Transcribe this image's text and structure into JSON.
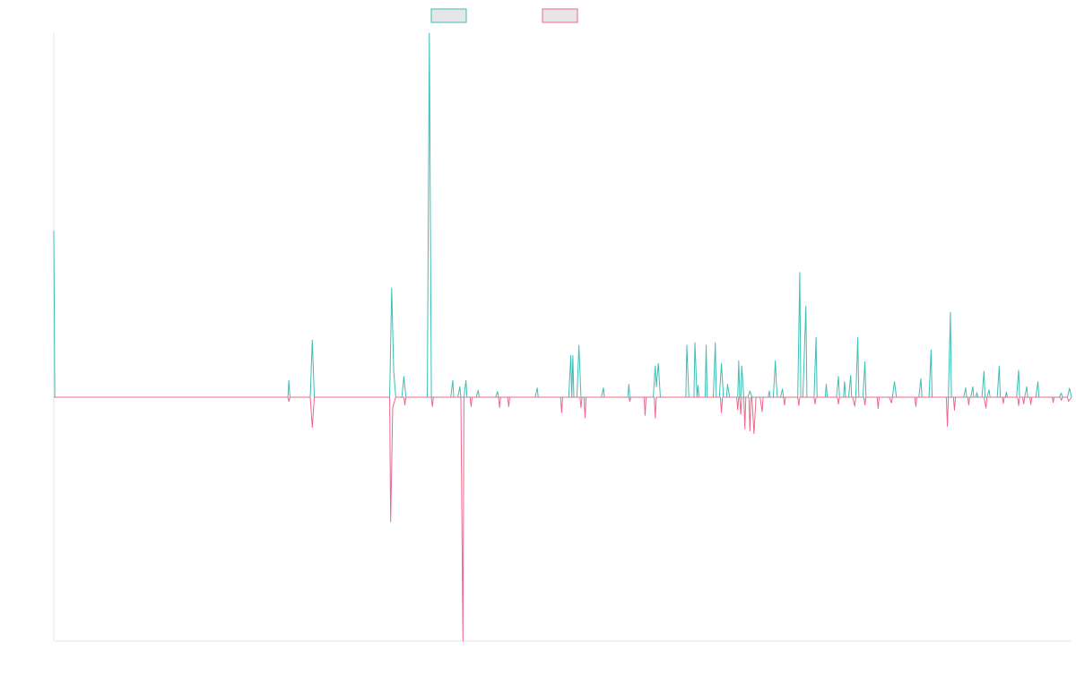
{
  "colors": {
    "series_a": "#3dbfb6",
    "series_b": "#f0668a",
    "legend_fill": "#e6e6e6",
    "axis": "#e6e6e6"
  },
  "chart_data": {
    "type": "line",
    "title": "",
    "xlabel": "",
    "ylabel": "",
    "grid": false,
    "legend_position": "top-center",
    "xlim": [
      0,
      1000
    ],
    "ylim": [
      -47,
      70
    ],
    "series": [
      {
        "color": "#3dbfb6",
        "points": [
          [
            0,
            32
          ],
          [
            1,
            0
          ],
          [
            110,
            0
          ],
          [
            112,
            0
          ],
          [
            230,
            0
          ],
          [
            231,
            3.2
          ],
          [
            232,
            0
          ],
          [
            252,
            0
          ],
          [
            254,
            11
          ],
          [
            256,
            0
          ],
          [
            330,
            0
          ],
          [
            332,
            21
          ],
          [
            334,
            5
          ],
          [
            336,
            0
          ],
          [
            342,
            0
          ],
          [
            344,
            4
          ],
          [
            346,
            0
          ],
          [
            367,
            0
          ],
          [
            369,
            70
          ],
          [
            371,
            0
          ],
          [
            390,
            0
          ],
          [
            392,
            3.2
          ],
          [
            393,
            0
          ],
          [
            397,
            0
          ],
          [
            399,
            2
          ],
          [
            400,
            0
          ],
          [
            403,
            0
          ],
          [
            405,
            3.2
          ],
          [
            406,
            0
          ],
          [
            415,
            0
          ],
          [
            417,
            1.3
          ],
          [
            418,
            0
          ],
          [
            434,
            0
          ],
          [
            436,
            1.1
          ],
          [
            437,
            0
          ],
          [
            473,
            0
          ],
          [
            475,
            1.8
          ],
          [
            476,
            0
          ],
          [
            506,
            0
          ],
          [
            508,
            8
          ],
          [
            509,
            0
          ],
          [
            510,
            8
          ],
          [
            511,
            0
          ],
          [
            514,
            0
          ],
          [
            516,
            10
          ],
          [
            518,
            0
          ],
          [
            538,
            0
          ],
          [
            540,
            1.8
          ],
          [
            541,
            0
          ],
          [
            564,
            0
          ],
          [
            565,
            2.5
          ],
          [
            566,
            0
          ],
          [
            589,
            0
          ],
          [
            591,
            6
          ],
          [
            592,
            2
          ],
          [
            594,
            6.5
          ],
          [
            596,
            0
          ],
          [
            621,
            0
          ],
          [
            622,
            10
          ],
          [
            624,
            0
          ],
          [
            629,
            0
          ],
          [
            630,
            10.5
          ],
          [
            632,
            0
          ],
          [
            633,
            2.3
          ],
          [
            634,
            0
          ],
          [
            640,
            0
          ],
          [
            641,
            10
          ],
          [
            642,
            0
          ],
          [
            648,
            0
          ],
          [
            650,
            10.5
          ],
          [
            651,
            0
          ],
          [
            654,
            0
          ],
          [
            656,
            6.5
          ],
          [
            658,
            0
          ],
          [
            661,
            0
          ],
          [
            662,
            2.5
          ],
          [
            664,
            0
          ],
          [
            672,
            0
          ],
          [
            673,
            7
          ],
          [
            674,
            0
          ],
          [
            675,
            0
          ],
          [
            676,
            6
          ],
          [
            678,
            0
          ],
          [
            682,
            0
          ],
          [
            684,
            1.2
          ],
          [
            686,
            0
          ],
          [
            702,
            0
          ],
          [
            703,
            1.2
          ],
          [
            704,
            0
          ],
          [
            707,
            0
          ],
          [
            709,
            7
          ],
          [
            710,
            2.5
          ],
          [
            711,
            0
          ],
          [
            714,
            0
          ],
          [
            716,
            1.6
          ],
          [
            717,
            0
          ],
          [
            731,
            0
          ],
          [
            733,
            24
          ],
          [
            734,
            0
          ],
          [
            736,
            0
          ],
          [
            739,
            17.5
          ],
          [
            740,
            0
          ],
          [
            747,
            0
          ],
          [
            749,
            11.5
          ],
          [
            750,
            0
          ],
          [
            758,
            0
          ],
          [
            759,
            2.5
          ],
          [
            760,
            0
          ],
          [
            769,
            0
          ],
          [
            771,
            4
          ],
          [
            772,
            0
          ],
          [
            776,
            0
          ],
          [
            777,
            3
          ],
          [
            778,
            0
          ],
          [
            781,
            0
          ],
          [
            783,
            4.2
          ],
          [
            784,
            0
          ],
          [
            788,
            0
          ],
          [
            790,
            11.5
          ],
          [
            791,
            0
          ],
          [
            795,
            0
          ],
          [
            797,
            6.8
          ],
          [
            798,
            0
          ],
          [
            824,
            0
          ],
          [
            826,
            3
          ],
          [
            828,
            0
          ],
          [
            850,
            0
          ],
          [
            852,
            3.6
          ],
          [
            853,
            0
          ],
          [
            860,
            0
          ],
          [
            862,
            9.1
          ],
          [
            863,
            0
          ],
          [
            879,
            0
          ],
          [
            881,
            16.3
          ],
          [
            882,
            0
          ],
          [
            894,
            0
          ],
          [
            896,
            1.8
          ],
          [
            897,
            0
          ],
          [
            901,
            0
          ],
          [
            903,
            2
          ],
          [
            904,
            0
          ],
          [
            906,
            0
          ],
          [
            907,
            0.9
          ],
          [
            908,
            0
          ],
          [
            912,
            0
          ],
          [
            914,
            5
          ],
          [
            915,
            0
          ],
          [
            917,
            0
          ],
          [
            919,
            1.4
          ],
          [
            920,
            0
          ],
          [
            927,
            0
          ],
          [
            929,
            6
          ],
          [
            930,
            0
          ],
          [
            935,
            0
          ],
          [
            936,
            1
          ],
          [
            937,
            0
          ],
          [
            946,
            0
          ],
          [
            948,
            5.2
          ],
          [
            949,
            0
          ],
          [
            954,
            0
          ],
          [
            956,
            2
          ],
          [
            957,
            0
          ],
          [
            965,
            0
          ],
          [
            967,
            3
          ],
          [
            968,
            0
          ],
          [
            988,
            0
          ],
          [
            990,
            0.8
          ],
          [
            991,
            0
          ],
          [
            996,
            0
          ],
          [
            998,
            1.7
          ],
          [
            1000,
            0
          ]
        ]
      },
      {
        "color": "#f0668a",
        "points": [
          [
            0,
            0
          ],
          [
            230,
            0
          ],
          [
            231,
            -0.8
          ],
          [
            232,
            0
          ],
          [
            252,
            0
          ],
          [
            254,
            -5.8
          ],
          [
            256,
            0
          ],
          [
            330,
            0
          ],
          [
            331,
            -24
          ],
          [
            333,
            -2
          ],
          [
            336,
            0
          ],
          [
            344,
            0
          ],
          [
            345,
            -1.5
          ],
          [
            346,
            0
          ],
          [
            371,
            0
          ],
          [
            372,
            -1.8
          ],
          [
            373,
            0
          ],
          [
            400,
            0
          ],
          [
            402,
            -47
          ],
          [
            403,
            0
          ],
          [
            409,
            0
          ],
          [
            410,
            -1.8
          ],
          [
            411,
            0
          ],
          [
            437,
            0
          ],
          [
            438,
            -2
          ],
          [
            439,
            0
          ],
          [
            446,
            0
          ],
          [
            447,
            -1.8
          ],
          [
            448,
            0
          ],
          [
            498,
            0
          ],
          [
            499,
            -3
          ],
          [
            500,
            0
          ],
          [
            517,
            0
          ],
          [
            518,
            -2
          ],
          [
            519,
            0
          ],
          [
            521,
            0
          ],
          [
            522,
            -4
          ],
          [
            523,
            0
          ],
          [
            565,
            0
          ],
          [
            566,
            -0.8
          ],
          [
            567,
            0
          ],
          [
            580,
            0
          ],
          [
            581,
            -3.5
          ],
          [
            582,
            0
          ],
          [
            590,
            0
          ],
          [
            591,
            -4
          ],
          [
            592,
            0
          ],
          [
            655,
            0
          ],
          [
            656,
            -3
          ],
          [
            657,
            0
          ],
          [
            671,
            0
          ],
          [
            672,
            -2.4
          ],
          [
            673,
            0
          ],
          [
            674,
            0
          ],
          [
            675,
            -3.3
          ],
          [
            676,
            0
          ],
          [
            678,
            0
          ],
          [
            679,
            -6.1
          ],
          [
            680,
            0
          ],
          [
            683,
            0
          ],
          [
            684,
            -6.5
          ],
          [
            685,
            0
          ],
          [
            686,
            0
          ],
          [
            688,
            -7
          ],
          [
            690,
            0
          ],
          [
            694,
            0
          ],
          [
            696,
            -2.8
          ],
          [
            697,
            0
          ],
          [
            717,
            0
          ],
          [
            718,
            -1.5
          ],
          [
            719,
            0
          ],
          [
            731,
            0
          ],
          [
            732,
            -1.6
          ],
          [
            733,
            0
          ],
          [
            747,
            0
          ],
          [
            748,
            -1.3
          ],
          [
            749,
            0
          ],
          [
            770,
            0
          ],
          [
            771,
            -1.3
          ],
          [
            772,
            0
          ],
          [
            785,
            0
          ],
          [
            787,
            -1.7
          ],
          [
            788,
            0
          ],
          [
            796,
            0
          ],
          [
            797,
            -1.5
          ],
          [
            798,
            0
          ],
          [
            809,
            0
          ],
          [
            810,
            -2.2
          ],
          [
            811,
            0
          ],
          [
            821,
            0
          ],
          [
            823,
            -1.1
          ],
          [
            824,
            0
          ],
          [
            846,
            0
          ],
          [
            847,
            -1.8
          ],
          [
            848,
            0
          ],
          [
            877,
            0
          ],
          [
            878,
            -5.6
          ],
          [
            879,
            0
          ],
          [
            884,
            0
          ],
          [
            885,
            -2.5
          ],
          [
            886,
            0
          ],
          [
            898,
            0
          ],
          [
            899,
            -1.5
          ],
          [
            900,
            0
          ],
          [
            914,
            0
          ],
          [
            916,
            -2.1
          ],
          [
            917,
            0
          ],
          [
            932,
            0
          ],
          [
            933,
            -1.2
          ],
          [
            934,
            0
          ],
          [
            947,
            0
          ],
          [
            948,
            -1.6
          ],
          [
            949,
            0
          ],
          [
            952,
            0
          ],
          [
            953,
            -1.3
          ],
          [
            954,
            0
          ],
          [
            959,
            0
          ],
          [
            960,
            -1.4
          ],
          [
            961,
            0
          ],
          [
            981,
            0
          ],
          [
            982,
            -1
          ],
          [
            983,
            0
          ],
          [
            989,
            0
          ],
          [
            990,
            -0.6
          ],
          [
            991,
            0
          ],
          [
            996,
            0
          ],
          [
            997,
            -0.8
          ],
          [
            1000,
            0
          ]
        ]
      }
    ]
  }
}
